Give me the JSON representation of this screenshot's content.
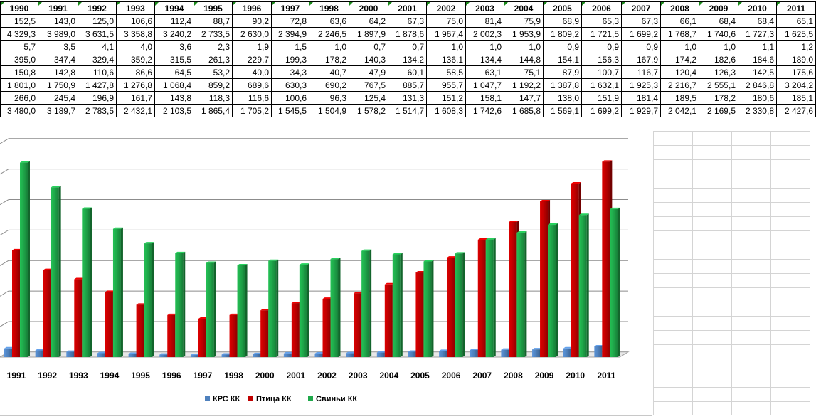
{
  "sheet": {
    "years": [
      "1990",
      "1991",
      "1992",
      "1993",
      "1994",
      "1995",
      "1996",
      "1997",
      "1998",
      "2000",
      "2001",
      "2002",
      "2003",
      "2004",
      "2005",
      "2006",
      "2007",
      "2008",
      "2009",
      "2010",
      "2011"
    ],
    "rows": [
      [
        "152,5",
        "143,0",
        "125,0",
        "106,6",
        "112,4",
        "88,7",
        "90,2",
        "72,8",
        "63,6",
        "64,2",
        "67,3",
        "75,0",
        "81,4",
        "75,9",
        "68,9",
        "65,3",
        "67,3",
        "66,1",
        "68,4",
        "68,4",
        "65,1"
      ],
      [
        "4 329,3",
        "3 989,0",
        "3 631,5",
        "3 358,8",
        "3 240,2",
        "2 733,5",
        "2 630,0",
        "2 394,9",
        "2 246,5",
        "1 897,9",
        "1 878,6",
        "1 967,4",
        "2 002,3",
        "1 953,9",
        "1 809,2",
        "1 721,5",
        "1 699,2",
        "1 768,7",
        "1 740,6",
        "1 727,3",
        "1 625,5"
      ],
      [
        "5,7",
        "3,5",
        "4,1",
        "4,0",
        "3,6",
        "2,3",
        "1,9",
        "1,5",
        "1,0",
        "0,7",
        "0,7",
        "1,0",
        "1,0",
        "1,0",
        "0,9",
        "0,9",
        "0,9",
        "1,0",
        "1,0",
        "1,1",
        "1,2"
      ],
      [
        "395,0",
        "347,4",
        "329,4",
        "359,2",
        "315,5",
        "261,3",
        "229,7",
        "199,3",
        "178,2",
        "140,3",
        "134,2",
        "136,1",
        "134,4",
        "144,8",
        "154,1",
        "156,3",
        "167,9",
        "174,2",
        "182,6",
        "184,6",
        "189,0"
      ],
      [
        "150,8",
        "142,8",
        "110,6",
        "86,6",
        "64,5",
        "53,2",
        "40,0",
        "34,3",
        "40,7",
        "47,9",
        "60,1",
        "58,5",
        "63,1",
        "75,1",
        "87,9",
        "100,7",
        "116,7",
        "120,4",
        "126,3",
        "142,5",
        "175,6"
      ],
      [
        "1 801,0",
        "1 750,9",
        "1 427,8",
        "1 276,8",
        "1 068,4",
        "859,2",
        "689,6",
        "630,3",
        "690,2",
        "767,5",
        "885,7",
        "955,7",
        "1 047,7",
        "1 192,2",
        "1 387,8",
        "1 632,1",
        "1 925,3",
        "2 216,7",
        "2 555,1",
        "2 846,8",
        "3 204,2"
      ],
      [
        "266,0",
        "245,4",
        "196,9",
        "161,7",
        "143,8",
        "118,3",
        "116,6",
        "100,6",
        "96,3",
        "125,4",
        "131,3",
        "151,2",
        "158,1",
        "147,7",
        "138,0",
        "151,9",
        "181,4",
        "189,5",
        "178,2",
        "180,6",
        "185,1"
      ],
      [
        "3 480,0",
        "3 189,7",
        "2 783,5",
        "2 432,1",
        "2 103,5",
        "1 865,4",
        "1 705,2",
        "1 545,5",
        "1 504,9",
        "1 578,2",
        "1 514,7",
        "1 608,3",
        "1 742,6",
        "1 685,8",
        "1 569,1",
        "1 699,2",
        "1 929,7",
        "2 042,1",
        "2 169,5",
        "2 330,8",
        "2 427,6"
      ]
    ]
  },
  "chart_data": {
    "type": "bar",
    "categories": [
      "1991",
      "1992",
      "1993",
      "1994",
      "1995",
      "1996",
      "1997",
      "1998",
      "2000",
      "2001",
      "2002",
      "2003",
      "2004",
      "2005",
      "2006",
      "2007",
      "2008",
      "2009",
      "2010",
      "2011"
    ],
    "series": [
      {
        "name": "КРС КК",
        "color": "#4f81bd",
        "values": [
          142.8,
          110.6,
          86.6,
          64.5,
          53.2,
          40.0,
          34.3,
          40.7,
          47.9,
          60.1,
          58.5,
          63.1,
          75.1,
          87.9,
          100.7,
          116.7,
          120.4,
          126.3,
          142.5,
          175.6
        ]
      },
      {
        "name": "Птица КК",
        "color": "#c00000",
        "values": [
          1750.9,
          1427.8,
          1276.8,
          1068.4,
          859.2,
          689.6,
          630.3,
          690.2,
          767.5,
          885.7,
          955.7,
          1047.7,
          1192.2,
          1387.8,
          1632.1,
          1925.3,
          2216.7,
          2555.1,
          2846.8,
          3204.2
        ]
      },
      {
        "name": "Свиньи КК",
        "color": "#1fa84a",
        "values": [
          3189.7,
          2783.5,
          2432.1,
          2103.5,
          1865.4,
          1705.2,
          1545.5,
          1504.9,
          1578.2,
          1514.7,
          1608.3,
          1742.6,
          1685.8,
          1569.1,
          1699.2,
          1929.7,
          2042.1,
          2169.5,
          2330.8,
          2427.6
        ]
      }
    ],
    "grid": true,
    "legend": "bottom-center",
    "view": "3d-clustered-column"
  }
}
